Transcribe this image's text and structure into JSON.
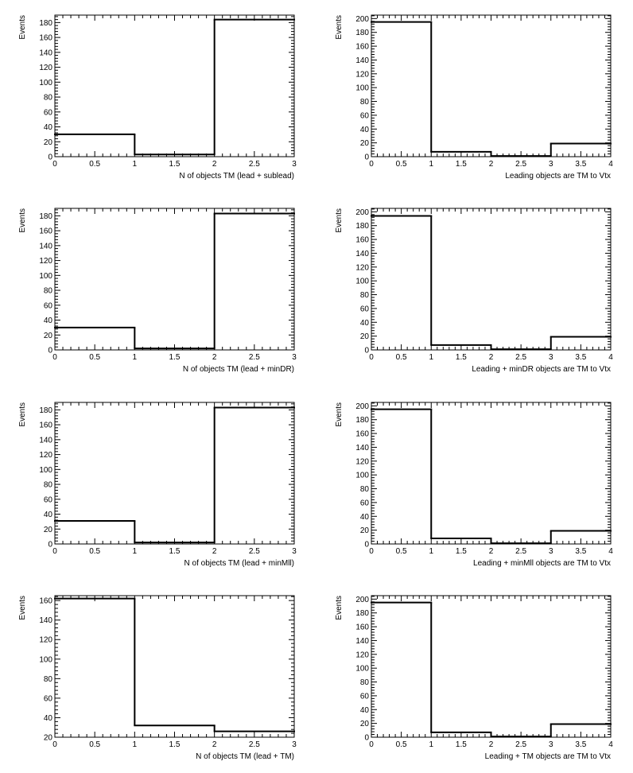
{
  "chart_data": [
    {
      "type": "histogram",
      "ylabel": "Events",
      "xlabel": "N of objects TM (lead + sublead)",
      "bin_edges": [
        0,
        1,
        2,
        3
      ],
      "values": [
        30,
        3,
        184
      ],
      "xlim": [
        0,
        3
      ],
      "ylim": [
        0,
        190
      ],
      "xticks": [
        0,
        0.5,
        1,
        1.5,
        2,
        2.5,
        3
      ],
      "xtick_labels": [
        "0",
        "0.5",
        "1",
        "1.5",
        "2",
        "2.5",
        "3"
      ],
      "yticks": [
        0,
        20,
        40,
        60,
        80,
        100,
        120,
        140,
        160,
        180
      ],
      "ytick_labels": [
        "0",
        "20",
        "40",
        "60",
        "80",
        "100",
        "120",
        "140",
        "160",
        "180"
      ]
    },
    {
      "type": "histogram",
      "ylabel": "Events",
      "xlabel": "Leading objects are TM to Vtx",
      "bin_edges": [
        0,
        1,
        2,
        3,
        4
      ],
      "values": [
        195,
        7,
        1,
        19
      ],
      "xlim": [
        0,
        4
      ],
      "ylim": [
        0,
        205
      ],
      "xticks": [
        0,
        0.5,
        1,
        1.5,
        2,
        2.5,
        3,
        3.5,
        4
      ],
      "xtick_labels": [
        "0",
        "0.5",
        "1",
        "1.5",
        "2",
        "2.5",
        "3",
        "3.5",
        "4"
      ],
      "yticks": [
        0,
        20,
        40,
        60,
        80,
        100,
        120,
        140,
        160,
        180,
        200
      ],
      "ytick_labels": [
        "0",
        "20",
        "40",
        "60",
        "80",
        "100",
        "120",
        "140",
        "160",
        "180",
        "200"
      ]
    },
    {
      "type": "histogram",
      "ylabel": "Events",
      "xlabel": "N of objects TM (lead + minDR)",
      "bin_edges": [
        0,
        1,
        2,
        3
      ],
      "values": [
        30,
        2,
        183
      ],
      "xlim": [
        0,
        3
      ],
      "ylim": [
        0,
        190
      ],
      "xticks": [
        0,
        0.5,
        1,
        1.5,
        2,
        2.5,
        3
      ],
      "xtick_labels": [
        "0",
        "0.5",
        "1",
        "1.5",
        "2",
        "2.5",
        "3"
      ],
      "yticks": [
        0,
        20,
        40,
        60,
        80,
        100,
        120,
        140,
        160,
        180
      ],
      "ytick_labels": [
        "0",
        "20",
        "40",
        "60",
        "80",
        "100",
        "120",
        "140",
        "160",
        "180"
      ]
    },
    {
      "type": "histogram",
      "ylabel": "Events",
      "xlabel": "Leading + minDR objects are TM to Vtx",
      "bin_edges": [
        0,
        1,
        2,
        3,
        4
      ],
      "values": [
        194,
        7,
        1,
        19
      ],
      "xlim": [
        0,
        4
      ],
      "ylim": [
        0,
        205
      ],
      "xticks": [
        0,
        0.5,
        1,
        1.5,
        2,
        2.5,
        3,
        3.5,
        4
      ],
      "xtick_labels": [
        "0",
        "0.5",
        "1",
        "1.5",
        "2",
        "2.5",
        "3",
        "3.5",
        "4"
      ],
      "yticks": [
        0,
        20,
        40,
        60,
        80,
        100,
        120,
        140,
        160,
        180,
        200
      ],
      "ytick_labels": [
        "0",
        "20",
        "40",
        "60",
        "80",
        "100",
        "120",
        "140",
        "160",
        "180",
        "200"
      ]
    },
    {
      "type": "histogram",
      "ylabel": "Events",
      "xlabel": "N of objects TM (lead + minMll)",
      "bin_edges": [
        0,
        1,
        2,
        3
      ],
      "values": [
        31,
        2,
        183
      ],
      "xlim": [
        0,
        3
      ],
      "ylim": [
        0,
        190
      ],
      "xticks": [
        0,
        0.5,
        1,
        1.5,
        2,
        2.5,
        3
      ],
      "xtick_labels": [
        "0",
        "0.5",
        "1",
        "1.5",
        "2",
        "2.5",
        "3"
      ],
      "yticks": [
        0,
        20,
        40,
        60,
        80,
        100,
        120,
        140,
        160,
        180
      ],
      "ytick_labels": [
        "0",
        "20",
        "40",
        "60",
        "80",
        "100",
        "120",
        "140",
        "160",
        "180"
      ]
    },
    {
      "type": "histogram",
      "ylabel": "Events",
      "xlabel": "Leading + minMll objects are TM to Vtx",
      "bin_edges": [
        0,
        1,
        2,
        3,
        4
      ],
      "values": [
        195,
        8,
        1,
        19
      ],
      "xlim": [
        0,
        4
      ],
      "ylim": [
        0,
        205
      ],
      "xticks": [
        0,
        0.5,
        1,
        1.5,
        2,
        2.5,
        3,
        3.5,
        4
      ],
      "xtick_labels": [
        "0",
        "0.5",
        "1",
        "1.5",
        "2",
        "2.5",
        "3",
        "3.5",
        "4"
      ],
      "yticks": [
        0,
        20,
        40,
        60,
        80,
        100,
        120,
        140,
        160,
        180,
        200
      ],
      "ytick_labels": [
        "0",
        "20",
        "40",
        "60",
        "80",
        "100",
        "120",
        "140",
        "160",
        "180",
        "200"
      ]
    },
    {
      "type": "histogram",
      "ylabel": "Events",
      "xlabel": "N of objects TM (lead + TM)",
      "bin_edges": [
        0,
        1,
        2,
        3
      ],
      "values": [
        162,
        32,
        26
      ],
      "xlim": [
        0,
        3
      ],
      "ylim": [
        20,
        165
      ],
      "xticks": [
        0,
        0.5,
        1,
        1.5,
        2,
        2.5,
        3
      ],
      "xtick_labels": [
        "0",
        "0.5",
        "1",
        "1.5",
        "2",
        "2.5",
        "3"
      ],
      "yticks": [
        20,
        40,
        60,
        80,
        100,
        120,
        140,
        160
      ],
      "ytick_labels": [
        "20",
        "40",
        "60",
        "80",
        "100",
        "120",
        "140",
        "160"
      ]
    },
    {
      "type": "histogram",
      "ylabel": "Events",
      "xlabel": "Leading + TM objects are TM to Vtx",
      "bin_edges": [
        0,
        1,
        2,
        3,
        4
      ],
      "values": [
        195,
        7,
        1,
        19
      ],
      "xlim": [
        0,
        4
      ],
      "ylim": [
        0,
        205
      ],
      "xticks": [
        0,
        0.5,
        1,
        1.5,
        2,
        2.5,
        3,
        3.5,
        4
      ],
      "xtick_labels": [
        "0",
        "0.5",
        "1",
        "1.5",
        "2",
        "2.5",
        "3",
        "3.5",
        "4"
      ],
      "yticks": [
        0,
        20,
        40,
        60,
        80,
        100,
        120,
        140,
        160,
        180,
        200
      ],
      "ytick_labels": [
        "0",
        "20",
        "40",
        "60",
        "80",
        "100",
        "120",
        "140",
        "160",
        "180",
        "200"
      ]
    }
  ]
}
